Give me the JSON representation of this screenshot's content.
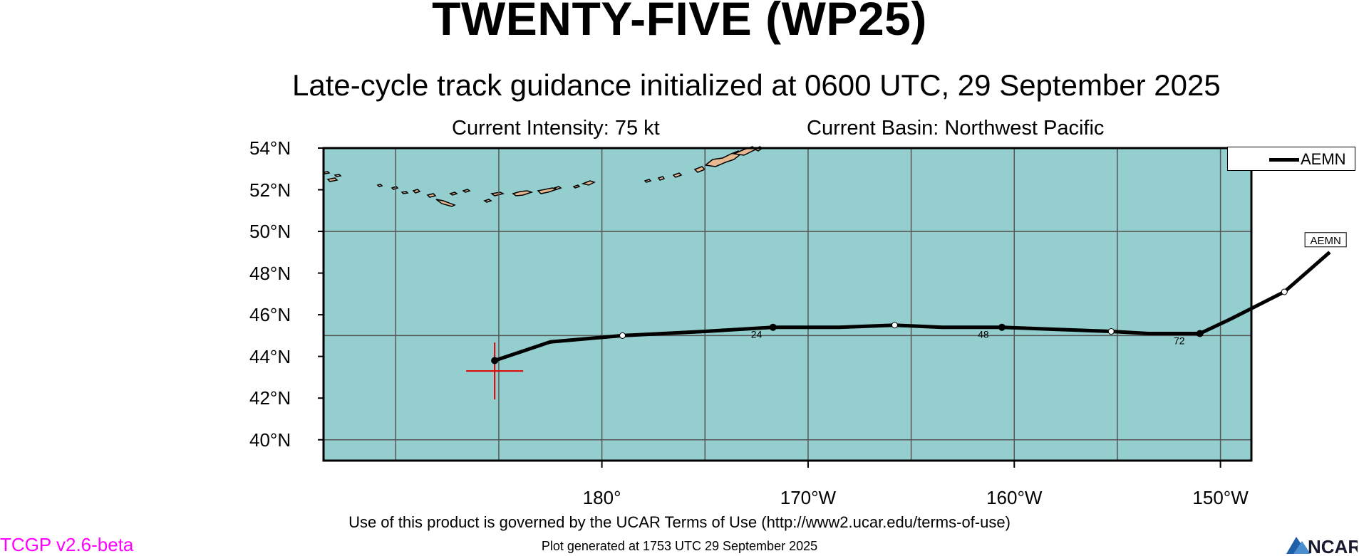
{
  "title": "TWENTY-FIVE (WP25)",
  "subtitle": "Late-cycle track guidance initialized at 0600 UTC, 29 September 2025",
  "current_intensity": "Current Intensity: 75 kt",
  "current_basin": "Current Basin: Northwest Pacific",
  "map": {
    "lon_range": [
      -193.5,
      -148.5
    ],
    "lat_range": [
      39,
      54
    ],
    "background_color": "#95cece",
    "land_color": "#e8b890",
    "grid_color": "#555555",
    "y_ticks": [
      {
        "lat": 54,
        "label": "54°N"
      },
      {
        "lat": 52,
        "label": "52°N"
      },
      {
        "lat": 50,
        "label": "50°N"
      },
      {
        "lat": 48,
        "label": "48°N"
      },
      {
        "lat": 46,
        "label": "46°N"
      },
      {
        "lat": 44,
        "label": "44°N"
      },
      {
        "lat": 42,
        "label": "42°N"
      },
      {
        "lat": 40,
        "label": "40°N"
      }
    ],
    "x_ticks": [
      {
        "lon": -180,
        "label": "180°"
      },
      {
        "lon": -170,
        "label": "170°W"
      },
      {
        "lon": -160,
        "label": "160°W"
      },
      {
        "lon": -150,
        "label": "150°W"
      }
    ],
    "current_position": {
      "lon": -185.2,
      "lat": 43.3
    }
  },
  "chart_data": {
    "type": "line",
    "series": [
      {
        "name": "AEMN",
        "color": "#000000",
        "points": [
          {
            "lon": -185.2,
            "lat": 43.8
          },
          {
            "lon": -182.5,
            "lat": 44.7
          },
          {
            "lon": -179.0,
            "lat": 45.0
          },
          {
            "lon": -175.0,
            "lat": 45.2
          },
          {
            "lon": -171.7,
            "lat": 45.4
          },
          {
            "lon": -168.5,
            "lat": 45.4
          },
          {
            "lon": -165.8,
            "lat": 45.5
          },
          {
            "lon": -163.5,
            "lat": 45.4
          },
          {
            "lon": -160.6,
            "lat": 45.4
          },
          {
            "lon": -158.0,
            "lat": 45.3
          },
          {
            "lon": -155.3,
            "lat": 45.2
          },
          {
            "lon": -153.5,
            "lat": 45.1
          },
          {
            "lon": -151.0,
            "lat": 45.1
          },
          {
            "lon": -149.5,
            "lat": 45.8
          },
          {
            "lon": -146.9,
            "lat": 47.1
          },
          {
            "lon": -144.7,
            "lat": 49.0
          }
        ],
        "markers": [
          {
            "lon": -185.2,
            "lat": 43.8,
            "style": "filled"
          },
          {
            "lon": -179.0,
            "lat": 45.0,
            "style": "open"
          },
          {
            "lon": -171.7,
            "lat": 45.4,
            "style": "filled"
          },
          {
            "lon": -165.8,
            "lat": 45.5,
            "style": "open"
          },
          {
            "lon": -160.6,
            "lat": 45.4,
            "style": "filled"
          },
          {
            "lon": -155.3,
            "lat": 45.2,
            "style": "open"
          },
          {
            "lon": -151.0,
            "lat": 45.1,
            "style": "filled"
          },
          {
            "lon": -146.9,
            "lat": 47.1,
            "style": "open"
          }
        ],
        "hour_labels": [
          {
            "lon": -172.5,
            "lat": 45.1,
            "text": "24"
          },
          {
            "lon": -161.5,
            "lat": 45.1,
            "text": "48"
          },
          {
            "lon": -152.0,
            "lat": 44.8,
            "text": "72"
          }
        ],
        "end_label": {
          "lon": -144.9,
          "lat": 49.6,
          "text": "AEMN"
        }
      }
    ]
  },
  "legend": {
    "entries": [
      {
        "name": "AEMN"
      }
    ]
  },
  "terms": "Use of this product is governed by the UCAR Terms of Use (http://www2.ucar.edu/terms-of-use)",
  "generated": "Plot generated at 1753 UTC   29 September 2025",
  "version": "TCGP v2.6-beta",
  "logo_text": "NCAR"
}
